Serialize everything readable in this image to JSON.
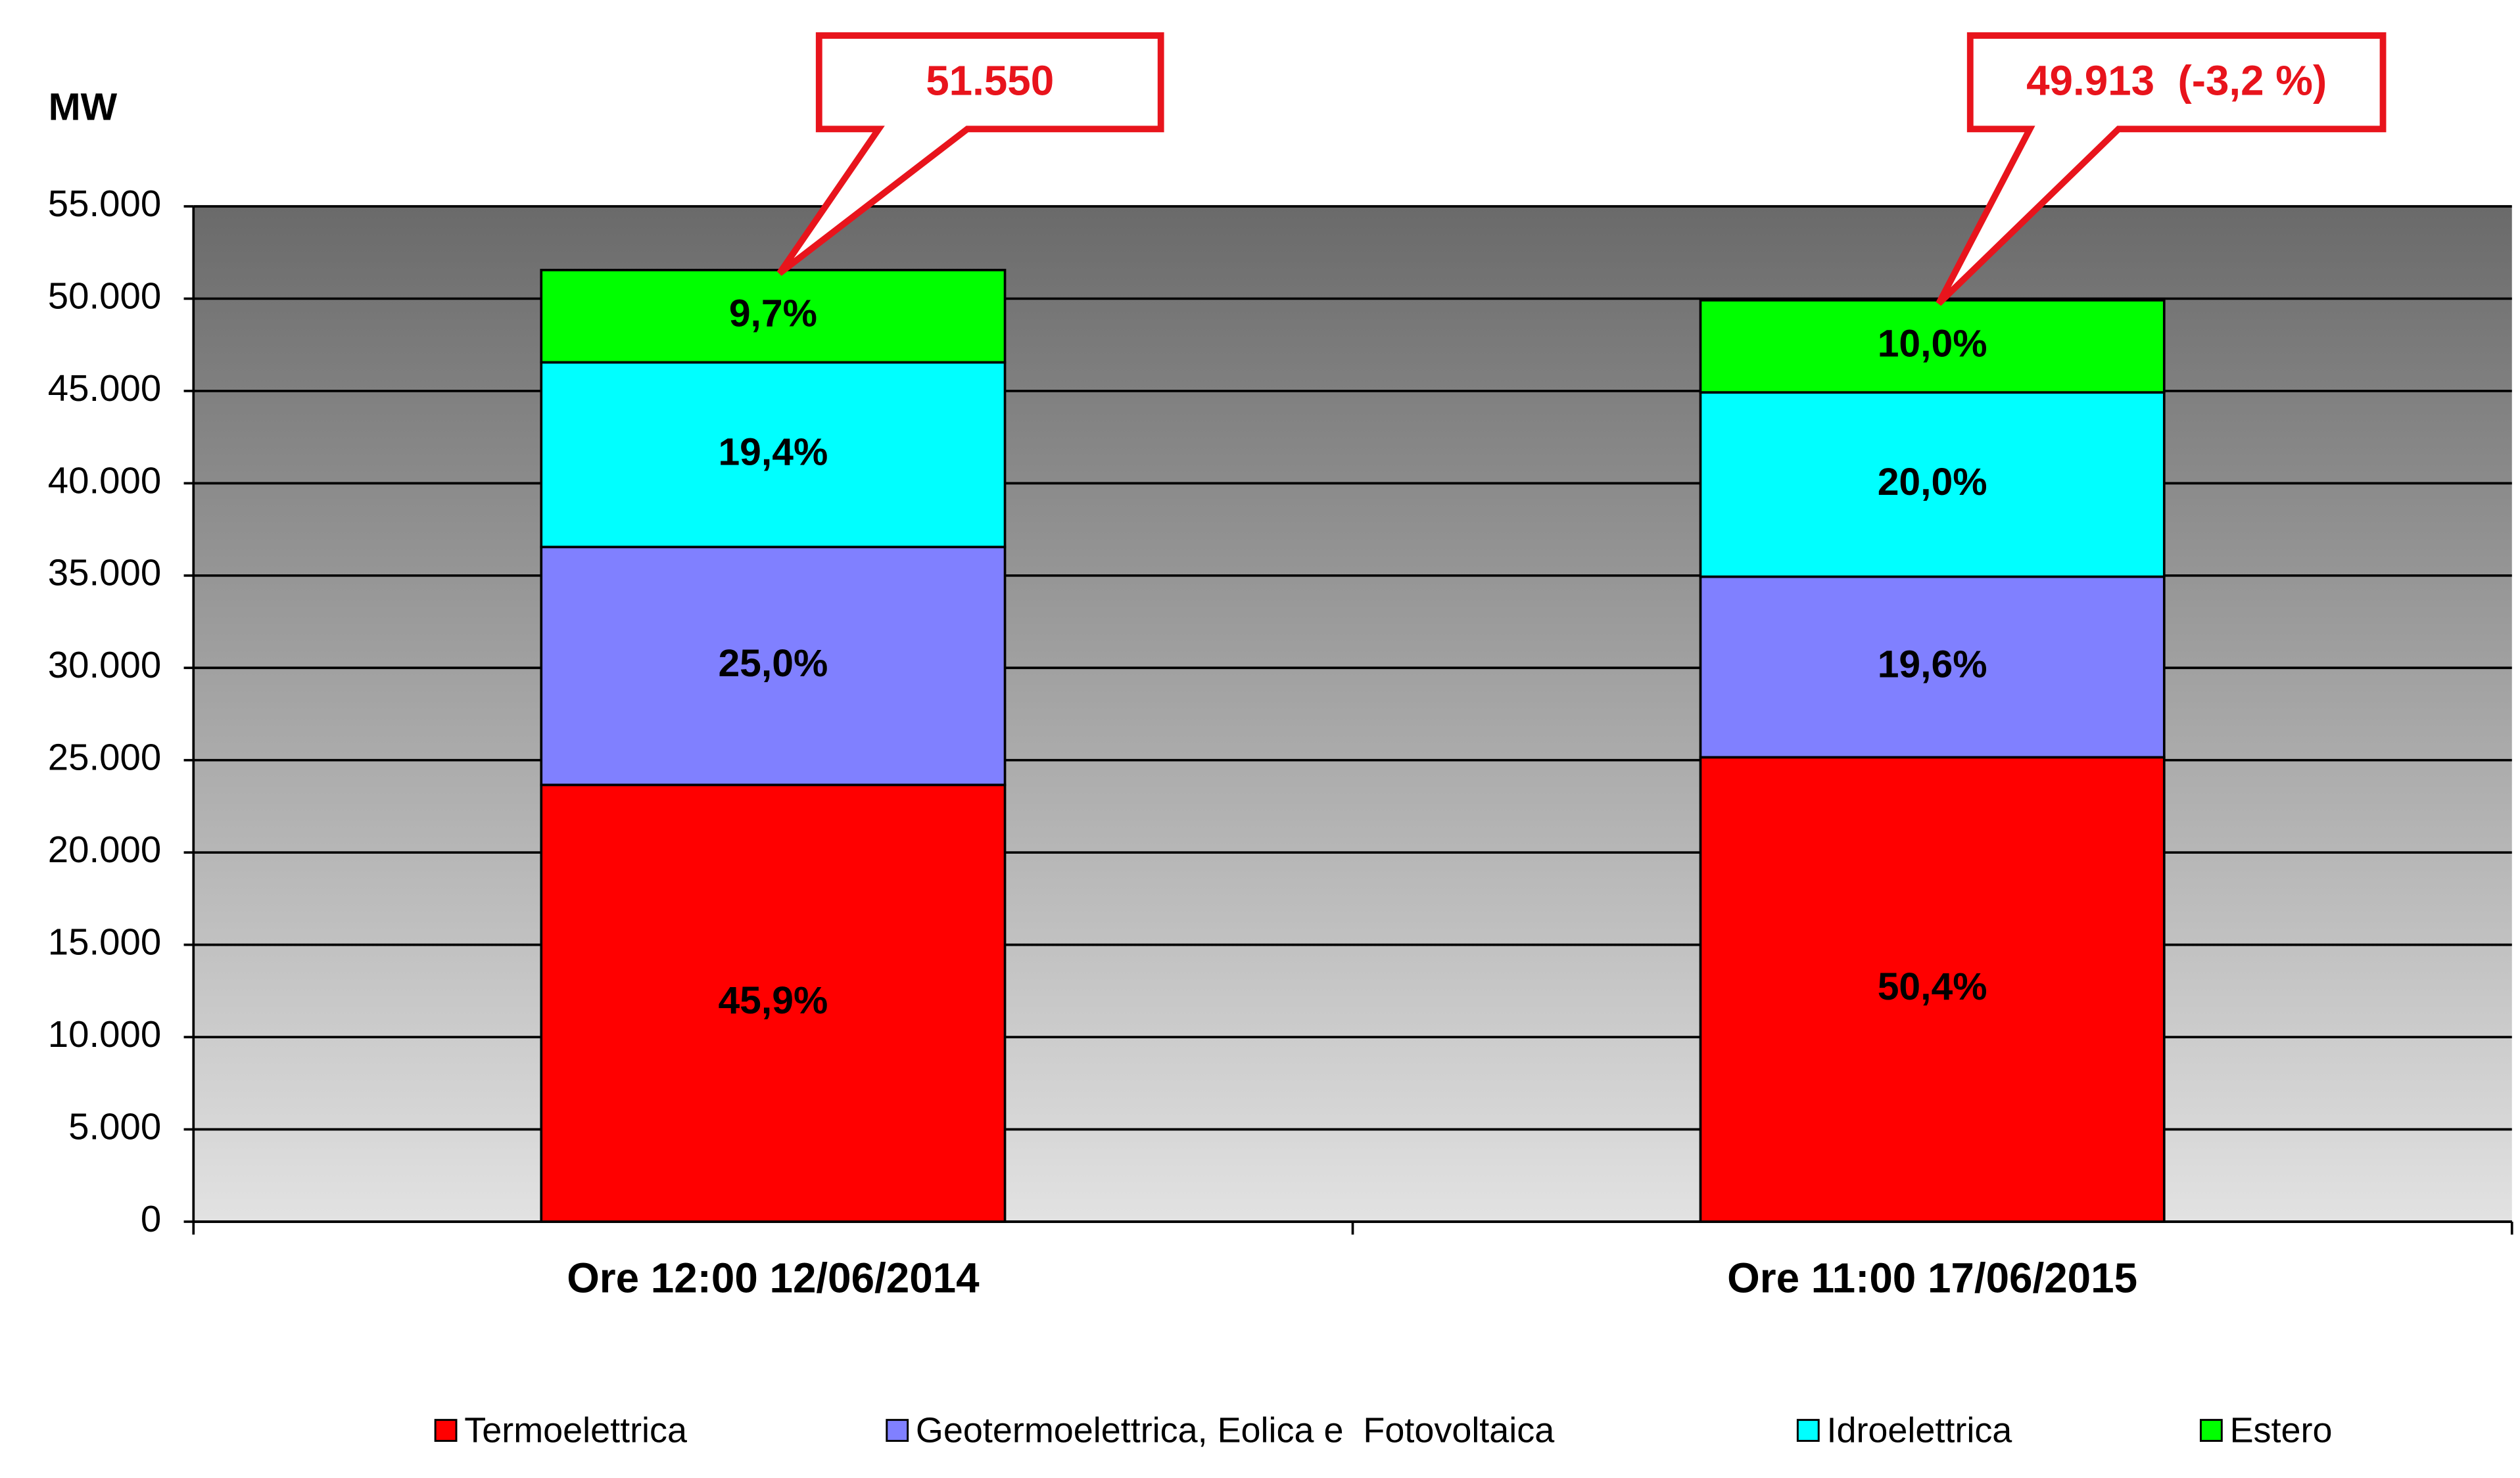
{
  "chart_data": {
    "type": "stacked-bar",
    "y_label": "MW",
    "categories": [
      "Ore  12:00  12/06/2014",
      "Ore  11:00  17/06/2015"
    ],
    "series": [
      {
        "name": "Termoelettrica",
        "color": "#ff0000",
        "values": [
          23661,
          25156
        ],
        "value_labels": [
          "45,9%",
          "50,4%"
        ]
      },
      {
        "name": "Geotermoelettrica, Eolica e  Fotovoltaica",
        "color": "#8080ff",
        "values": [
          12888,
          9783
        ],
        "value_labels": [
          "25,0%",
          "19,6%"
        ]
      },
      {
        "name": "Idroelettrica",
        "color": "#00ffff",
        "values": [
          10001,
          9983
        ],
        "value_labels": [
          "19,4%",
          "20,0%"
        ]
      },
      {
        "name": "Estero",
        "color": "#00ff00",
        "values": [
          5000,
          4991
        ],
        "value_labels": [
          "9,7%",
          "10,0%"
        ]
      }
    ],
    "annotations": [
      {
        "text": "51.550",
        "value": 51550
      },
      {
        "text": "49.913  (-3,2 %)",
        "value": 49913
      }
    ],
    "ylim": [
      0,
      55000
    ],
    "yticks": [
      0,
      {
        "value": 5000,
        "label": "5.000"
      },
      {
        "value": 10000,
        "label": "10.000"
      },
      {
        "value": 15000,
        "label": "15.000"
      },
      {
        "value": 20000,
        "label": "20.000"
      },
      {
        "value": 25000,
        "label": "25.000"
      },
      {
        "value": 30000,
        "label": "30.000"
      },
      {
        "value": 35000,
        "label": "35.000"
      },
      {
        "value": 40000,
        "label": "40.000"
      },
      {
        "value": 45000,
        "label": "45.000"
      },
      {
        "value": 50000,
        "label": "50.000"
      },
      {
        "value": {
          "value": 55000
        },
        "label": "55.000"
      }
    ],
    "grid": true,
    "legend": "bottom"
  }
}
